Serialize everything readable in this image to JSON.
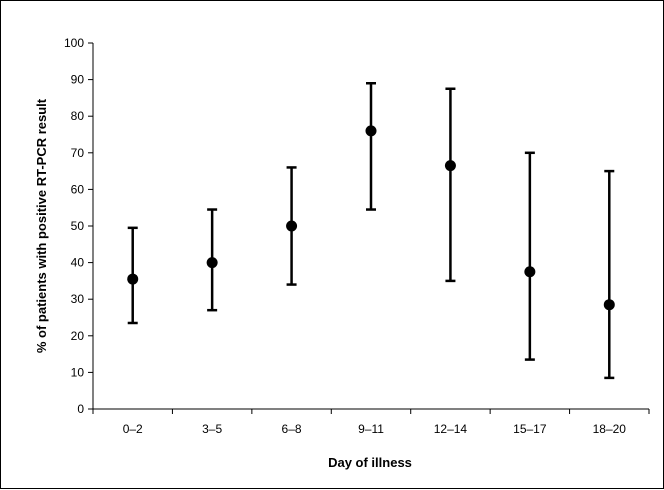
{
  "chart_data": {
    "type": "scatter",
    "title": "",
    "xlabel": "Day of illness",
    "ylabel": "% of patients with positive RT-PCR result",
    "categories": [
      "0–2",
      "3–5",
      "6–8",
      "9–11",
      "12–14",
      "15–17",
      "18–20"
    ],
    "series": [
      {
        "values": [
          35.5,
          40,
          50,
          76,
          66.5,
          37.5,
          28.5
        ],
        "lower": [
          23.5,
          27,
          34,
          54.5,
          35,
          13.5,
          8.5
        ],
        "upper": [
          49.5,
          54.5,
          66,
          89,
          87.5,
          70,
          65
        ]
      }
    ],
    "ylim": [
      0,
      100
    ],
    "yticks": [
      0,
      10,
      20,
      30,
      40,
      50,
      60,
      70,
      80,
      90,
      100
    ],
    "grid": false,
    "legend": "none",
    "colors": {
      "marker": "#000000",
      "axis": "#000000"
    }
  }
}
